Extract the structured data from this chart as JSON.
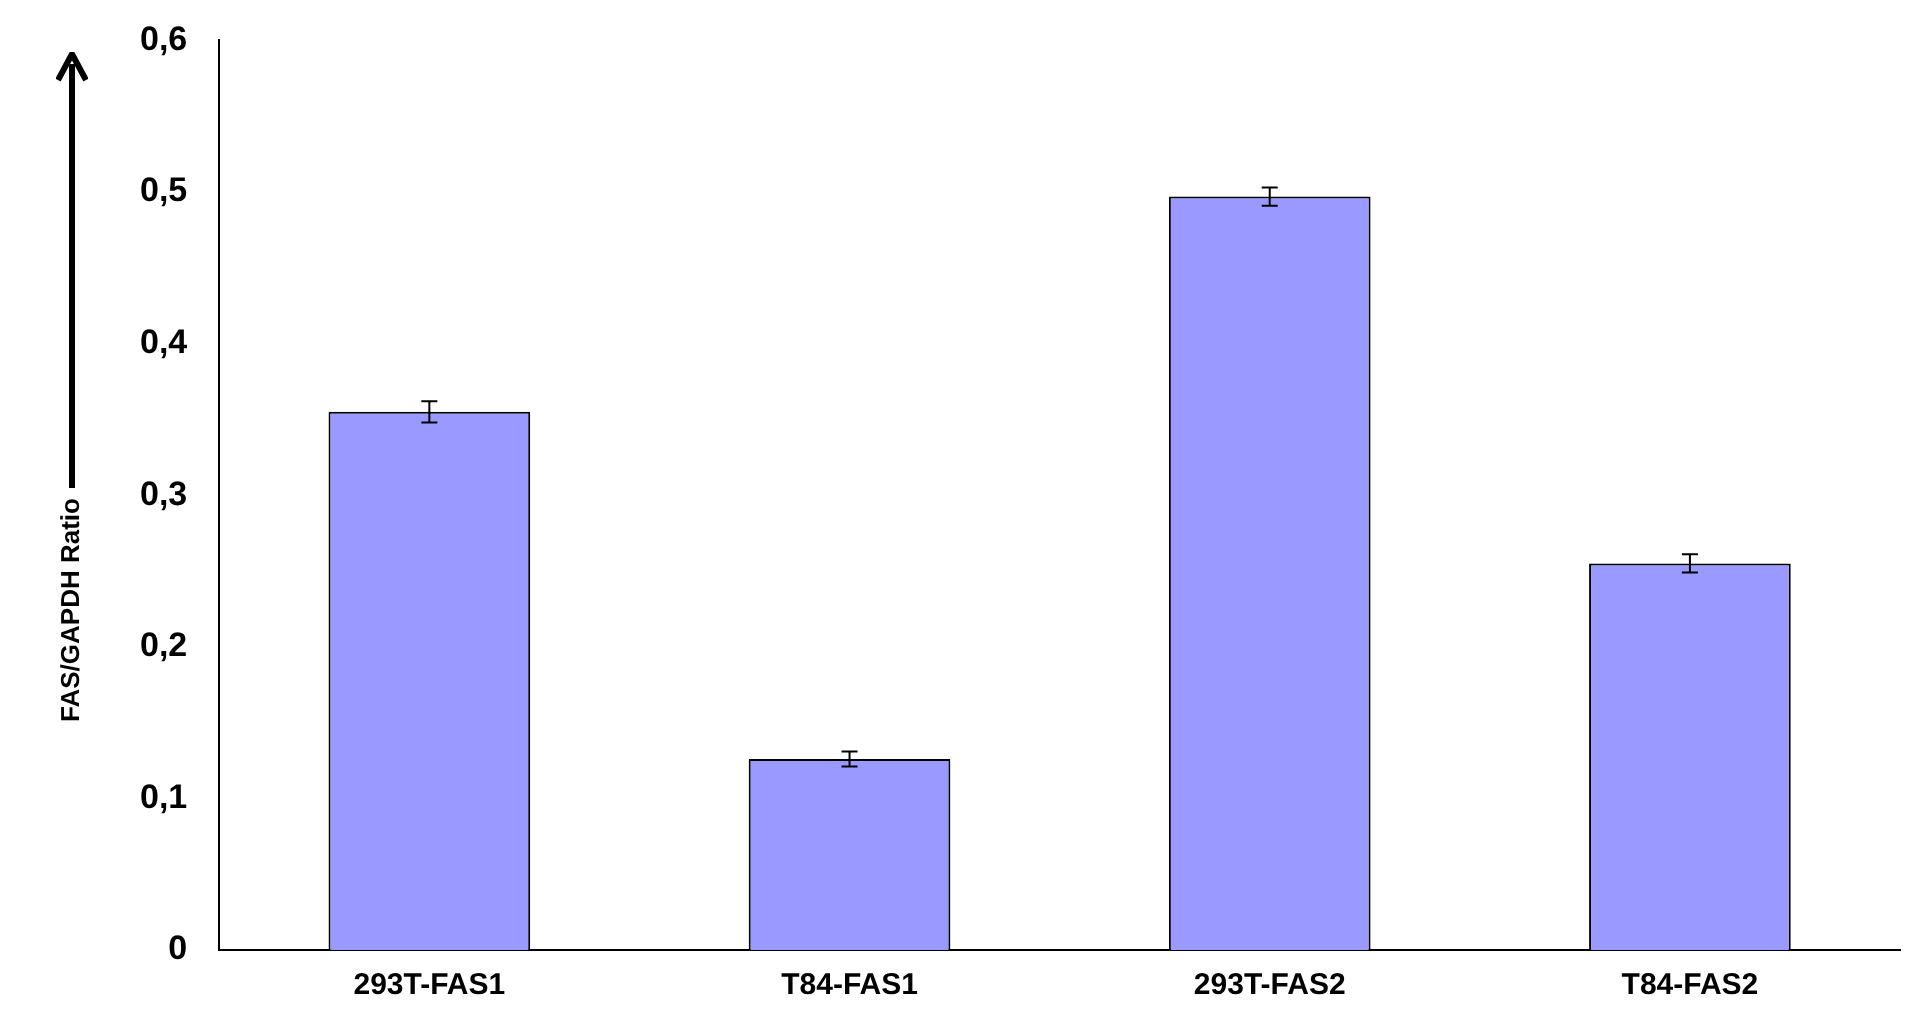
{
  "chart_data": {
    "type": "bar",
    "ylabel": "FAS/GAPDH Ratio",
    "categories": [
      "293T-FAS1",
      "T84-FAS1",
      "293T-FAS2",
      "T84-FAS2"
    ],
    "values": [
      0.355,
      0.126,
      0.497,
      0.255
    ],
    "errors": [
      0.007,
      0.005,
      0.006,
      0.006
    ],
    "color": "#9999ff",
    "ylim": [
      0,
      0.6
    ],
    "yticks": [
      {
        "value": 0,
        "label": "0"
      },
      {
        "value": 0.1,
        "label": "0,1"
      },
      {
        "value": 0.2,
        "label": "0,2"
      },
      {
        "value": 0.3,
        "label": "0,3"
      },
      {
        "value": 0.4,
        "label": "0,4"
      },
      {
        "value": 0.5,
        "label": "0,5"
      },
      {
        "value": 0.6,
        "label": "0,6"
      }
    ],
    "grid": false,
    "legend": false
  }
}
